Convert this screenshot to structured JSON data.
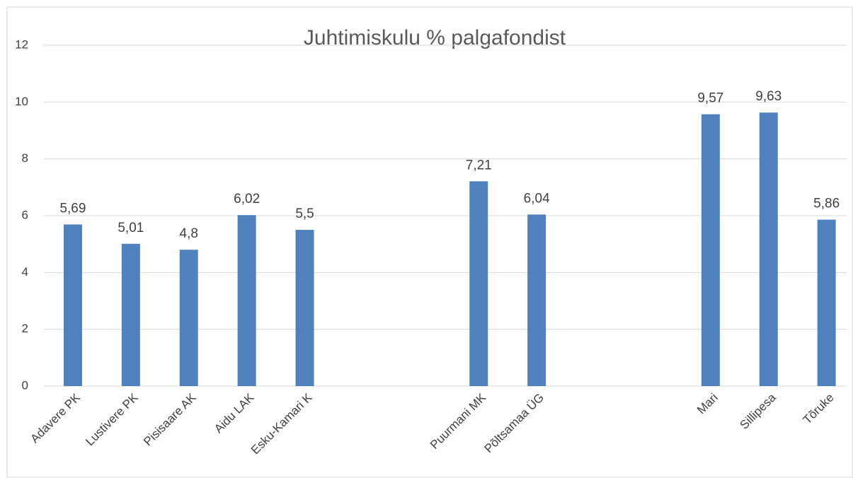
{
  "chart_data": {
    "type": "bar",
    "title": "Juhtimiskulu % palgafondist",
    "categories": [
      "Adavere PK",
      "Lustivere PK",
      "Pisisaare AK",
      "Aidu LAK",
      "Esku-Kamari K",
      null,
      null,
      "Puurmani MK",
      "Põltsamaa ÜG",
      null,
      null,
      "Mari",
      "Sillipesa",
      "Tõruke"
    ],
    "values": [
      5.69,
      5.01,
      4.8,
      6.02,
      5.5,
      null,
      null,
      7.21,
      6.04,
      null,
      null,
      9.57,
      9.63,
      5.86
    ],
    "value_labels": [
      "5,69",
      "5,01",
      "4,8",
      "6,02",
      "5,5",
      null,
      null,
      "7,21",
      "6,04",
      null,
      null,
      "9,57",
      "9,63",
      "5,86"
    ],
    "color": "#4f81bd",
    "ylim": [
      0,
      12
    ],
    "yticks": [
      0,
      2,
      4,
      6,
      8,
      10,
      12
    ],
    "grid": true
  }
}
